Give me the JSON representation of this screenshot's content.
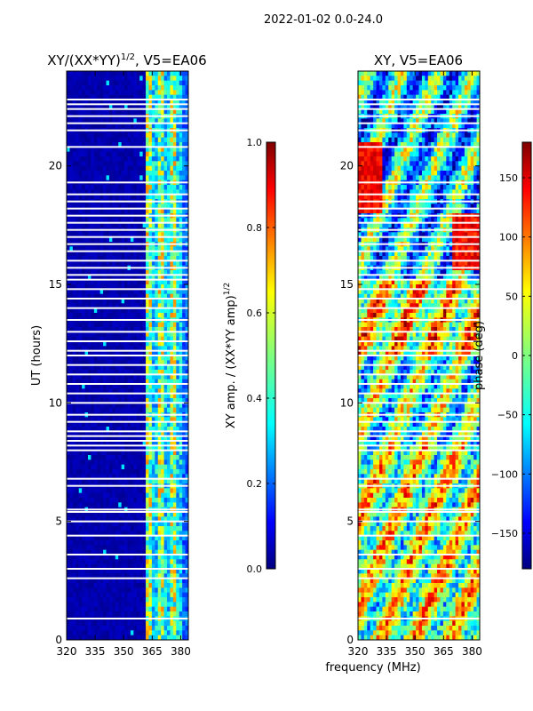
{
  "suptitle": "2022-01-02 0.0-24.0",
  "chart_data": [
    {
      "type": "heatmap",
      "title": "XY/(XX*YY)",
      "title_exponent": "1/2",
      "title_suffix": ", V5=EA06",
      "ylabel": "UT (hours)",
      "xlabel": "",
      "xlim": [
        320,
        384
      ],
      "ylim": [
        0,
        24
      ],
      "xticks": [
        "320",
        "335",
        "350",
        "365",
        "380"
      ],
      "yticks": [
        "0",
        "5",
        "10",
        "15",
        "20"
      ],
      "xtick_values": [
        320,
        335,
        350,
        365,
        380
      ],
      "ytick_values": [
        0,
        5,
        10,
        15,
        20
      ],
      "bright_band_mhz": [
        361,
        381
      ],
      "colorbar": {
        "label": "XY amp. / (XX*YY amp)",
        "label_exponent": "1/2",
        "range": [
          0.0,
          1.0
        ],
        "ticks": [
          "0.0",
          "0.2",
          "0.4",
          "0.6",
          "0.8",
          "1.0"
        ],
        "tick_values": [
          0.0,
          0.2,
          0.4,
          0.6,
          0.8,
          1.0
        ]
      }
    },
    {
      "type": "heatmap",
      "title": "XY, V5=EA06",
      "xlabel": "frequency (MHz)",
      "ylabel": "",
      "xlim": [
        320,
        384
      ],
      "ylim": [
        0,
        24
      ],
      "xticks": [
        "320",
        "335",
        "350",
        "365",
        "380"
      ],
      "yticks": [
        "0",
        "5",
        "10",
        "15",
        "20"
      ],
      "xtick_values": [
        320,
        335,
        350,
        365,
        380
      ],
      "ytick_values": [
        0,
        5,
        10,
        15,
        20
      ],
      "colorbar": {
        "label": "phase (deg)",
        "range": [
          -180,
          180
        ],
        "ticks": [
          "−150",
          "−100",
          "−50",
          "0",
          "50",
          "100",
          "150"
        ],
        "tick_values": [
          -150,
          -100,
          -50,
          0,
          50,
          100,
          150
        ]
      }
    }
  ],
  "colors": {
    "jet": [
      "#00007f",
      "#0000ff",
      "#007fff",
      "#00ffff",
      "#7fff7f",
      "#ffff00",
      "#ff7f00",
      "#ff0000",
      "#7f0000"
    ],
    "gap": "#ffffff"
  }
}
